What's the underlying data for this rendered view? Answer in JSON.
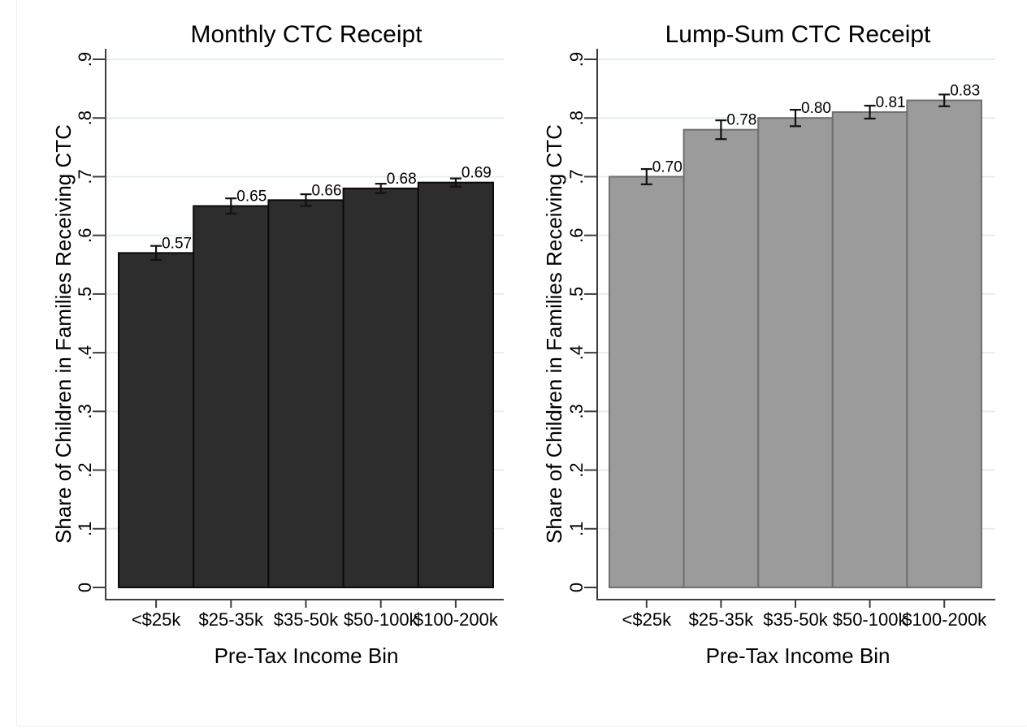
{
  "style": {
    "background": "#ffffff",
    "grid_color": "#e4eef1",
    "axis_color": "#3d3d3d",
    "text_color": "#000000",
    "error_bar_color": "#111111",
    "figure_border_color": "#f0f0f0"
  },
  "chart_data": [
    {
      "type": "bar",
      "title": "Monthly CTC Receipt",
      "xlabel": "Pre-Tax Income Bin",
      "ylabel": "Share of Children in Families Receiving CTC",
      "categories": [
        "<$25k",
        "$25-35k",
        "$35-50k",
        "$50-100k",
        "$100-200k"
      ],
      "values": [
        0.57,
        0.65,
        0.66,
        0.68,
        0.69
      ],
      "bar_labels": [
        "0.57",
        "0.65",
        "0.66",
        "0.68",
        "0.69"
      ],
      "error_margins": [
        0.012,
        0.013,
        0.01,
        0.008,
        0.007
      ],
      "ylim": [
        0,
        0.9
      ],
      "yticks": [
        0,
        0.1,
        0.2,
        0.3,
        0.4,
        0.5,
        0.6,
        0.7,
        0.8,
        0.9
      ],
      "ytick_labels": [
        "0",
        ".1",
        ".2",
        ".3",
        ".4",
        ".5",
        ".6",
        ".7",
        ".8",
        ".9"
      ],
      "grid": true,
      "legend": "none",
      "bar_fill": "#2d2d2d",
      "bar_stroke": "#0a0a0a"
    },
    {
      "type": "bar",
      "title": "Lump-Sum CTC Receipt",
      "xlabel": "Pre-Tax Income Bin",
      "ylabel": "Share of Children in Families Receiving CTC",
      "categories": [
        "<$25k",
        "$25-35k",
        "$35-50k",
        "$50-100k",
        "$100-200k"
      ],
      "values": [
        0.7,
        0.78,
        0.8,
        0.81,
        0.83
      ],
      "bar_labels": [
        "0.70",
        "0.78",
        "0.80",
        "0.81",
        "0.83"
      ],
      "error_margins": [
        0.013,
        0.016,
        0.014,
        0.011,
        0.01
      ],
      "ylim": [
        0,
        0.9
      ],
      "yticks": [
        0,
        0.1,
        0.2,
        0.3,
        0.4,
        0.5,
        0.6,
        0.7,
        0.8,
        0.9
      ],
      "ytick_labels": [
        "0",
        ".1",
        ".2",
        ".3",
        ".4",
        ".5",
        ".6",
        ".7",
        ".8",
        ".9"
      ],
      "grid": true,
      "legend": "none",
      "bar_fill": "#9b9b9b",
      "bar_stroke": "#6f6f6f"
    }
  ]
}
